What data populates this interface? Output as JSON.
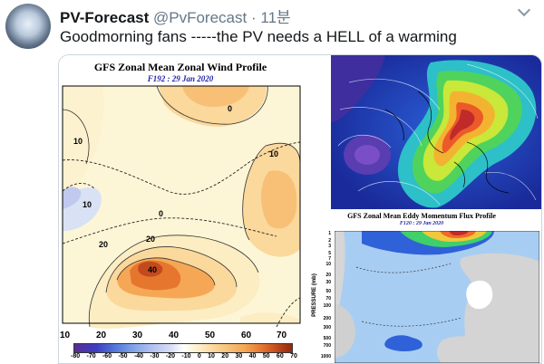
{
  "tweet": {
    "display_name": "PV-Forecast",
    "handle": "@PvForecast",
    "separator": "·",
    "timestamp": "11분",
    "text": "Goodmorning fans -----the PV needs a HELL of a warming"
  },
  "left_panel": {
    "title": "GFS Zonal Mean Zonal Wind Profile",
    "subtitle": "F192 : 29 Jan 2020",
    "x_ticks": [
      "10",
      "20",
      "30",
      "40",
      "50",
      "60",
      "70"
    ],
    "colorbar_ticks": [
      "-80",
      "-70",
      "-60",
      "-50",
      "-40",
      "-30",
      "-20",
      "-10",
      "0",
      "10",
      "20",
      "30",
      "40",
      "50",
      "60",
      "70"
    ],
    "contour_labels": [
      "10",
      "10",
      "0",
      "20",
      "20",
      "40",
      "10",
      "0"
    ]
  },
  "right_bottom_panel": {
    "title": "GFS Zonal Mean Eddy Momentum Flux Profile",
    "subtitle": "F120 : 29 Jan 2020",
    "y_label": "PRESSURE (mb)",
    "y_ticks": [
      "1",
      "2",
      "3",
      "5",
      "7",
      "10",
      "20",
      "30",
      "50",
      "70",
      "100",
      "200",
      "300",
      "500",
      "700",
      "1000"
    ]
  },
  "colors": {
    "text_primary": "#14171a",
    "text_secondary": "#657786",
    "media_border": "#ccd6dd"
  }
}
